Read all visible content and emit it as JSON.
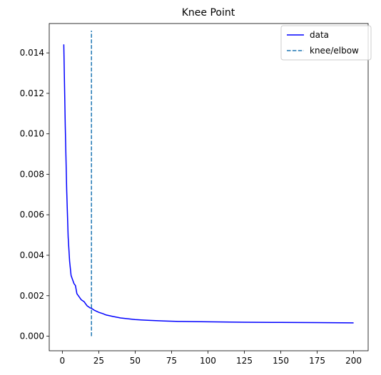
{
  "chart_data": {
    "type": "line",
    "title": "Knee Point",
    "xlabel": "",
    "ylabel": "",
    "xlim": [
      -9,
      210
    ],
    "ylim": [
      -0.00072,
      0.01545
    ],
    "xticks": [
      0,
      25,
      50,
      75,
      100,
      125,
      150,
      175,
      200
    ],
    "xtick_labels": [
      "0",
      "25",
      "50",
      "75",
      "100",
      "125",
      "150",
      "175",
      "200"
    ],
    "yticks": [
      0.0,
      0.002,
      0.004,
      0.006,
      0.008,
      0.01,
      0.012,
      0.014
    ],
    "ytick_labels": [
      "0.000",
      "0.002",
      "0.004",
      "0.006",
      "0.008",
      "0.010",
      "0.012",
      "0.014"
    ],
    "grid": false,
    "legend_position": "top-right",
    "series": [
      {
        "name": "data",
        "color": "#0000ff",
        "style": "solid",
        "x": [
          1,
          2,
          3,
          4,
          5,
          6,
          7,
          8,
          9,
          10,
          11,
          12,
          13,
          14,
          15,
          16,
          17,
          18,
          19,
          20,
          22,
          25,
          28,
          30,
          35,
          40,
          45,
          50,
          55,
          60,
          70,
          80,
          90,
          100,
          125,
          150,
          175,
          200
        ],
        "y": [
          0.01442,
          0.0104,
          0.0072,
          0.0049,
          0.0037,
          0.003,
          0.0028,
          0.0026,
          0.0025,
          0.0021,
          0.002,
          0.0019,
          0.0018,
          0.00175,
          0.0017,
          0.0016,
          0.0015,
          0.00145,
          0.0014,
          0.00138,
          0.00128,
          0.00118,
          0.00111,
          0.00105,
          0.00097,
          0.0009,
          0.00086,
          0.00082,
          0.0008,
          0.00078,
          0.00075,
          0.00073,
          0.00072,
          0.00071,
          0.00069,
          0.00068,
          0.00067,
          0.00066
        ]
      },
      {
        "name": "knee/elbow",
        "color": "#1f77b4",
        "style": "dashed",
        "x": [
          20,
          20
        ],
        "y": [
          0.0,
          0.0151
        ]
      }
    ]
  }
}
